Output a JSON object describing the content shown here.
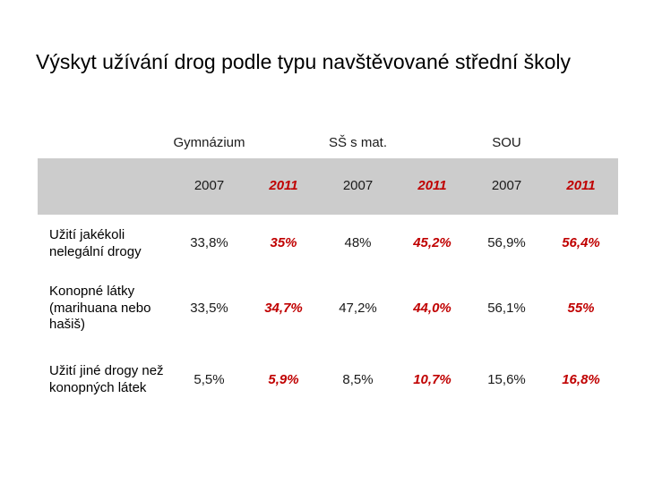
{
  "slide": {
    "title": "Výskyt užívání drog podle typu navštěvované střední školy"
  },
  "table": {
    "groups": [
      "Gymnázium",
      "SŠ s mat.",
      "SOU"
    ],
    "years": [
      "2007",
      "2011",
      "2007",
      "2011",
      "2007",
      "2011"
    ],
    "rows": [
      {
        "label": "Užití jakékoli nelegální drogy",
        "values": [
          "33,8%",
          "35%",
          "48%",
          "45,2%",
          "56,9%",
          "56,4%"
        ]
      },
      {
        "label": "Konopné látky (marihuana nebo hašiš)",
        "values": [
          "33,5%",
          "34,7%",
          "47,2%",
          "44,0%",
          "56,1%",
          "55%"
        ]
      },
      {
        "label": "Užití jiné drogy než konopných látek",
        "values": [
          "5,5%",
          "5,9%",
          "8,5%",
          "10,7%",
          "15,6%",
          "16,8%"
        ]
      }
    ],
    "colors": {
      "highlight_red": "#c00000",
      "header_band_gray": "#cccccc",
      "text_black": "#1a1a1a"
    }
  },
  "chart_data": {
    "type": "table",
    "title": "Výskyt užívání drog podle typu navštěvované střední školy",
    "column_groups": [
      "Gymnázium",
      "SŠ s mat.",
      "SOU"
    ],
    "columns": [
      "Gymnázium 2007",
      "Gymnázium 2011",
      "SŠ s mat. 2007",
      "SŠ s mat. 2011",
      "SOU 2007",
      "SOU 2011"
    ],
    "rows": [
      {
        "label": "Užití jakékoli nelegální drogy",
        "values_pct": [
          33.8,
          35,
          48,
          45.2,
          56.9,
          56.4
        ]
      },
      {
        "label": "Konopné látky (marihuana nebo hašiš)",
        "values_pct": [
          33.5,
          34.7,
          47.2,
          44.0,
          56.1,
          55
        ]
      },
      {
        "label": "Užití jiné drogy než konopných látek",
        "values_pct": [
          5.5,
          5.9,
          8.5,
          10.7,
          15.6,
          16.8
        ]
      }
    ],
    "layout_hints": {
      "year_2011_columns_styled": "red bold italic",
      "year_header_row_background": "#cccccc",
      "gridlines": "none"
    }
  }
}
